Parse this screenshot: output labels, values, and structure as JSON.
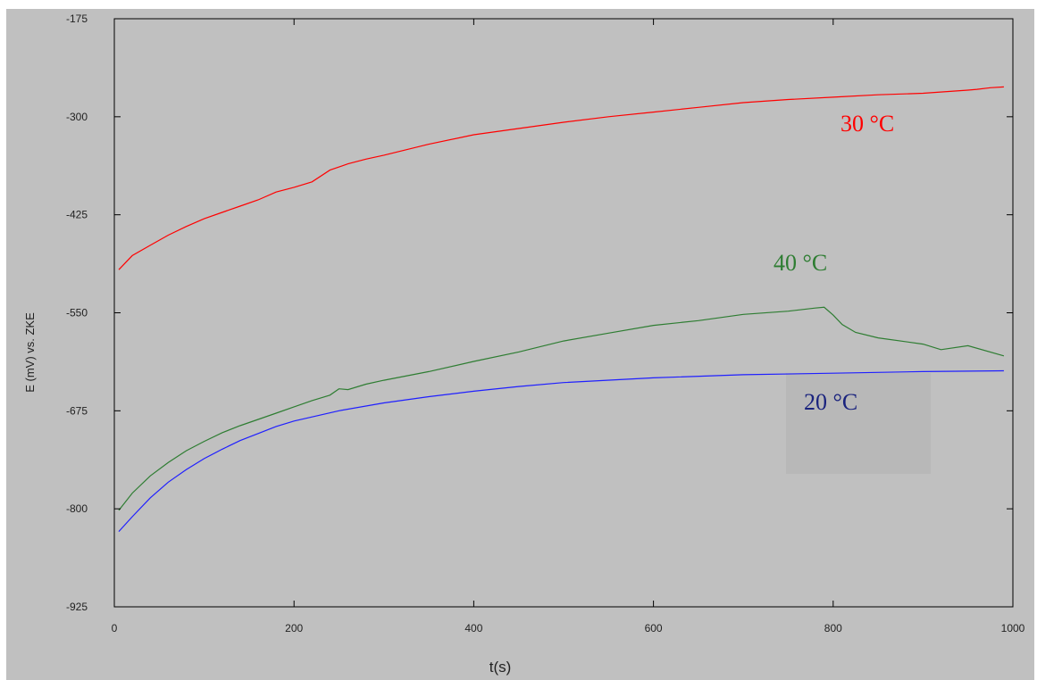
{
  "chart_data": {
    "type": "line",
    "title": "",
    "xlabel": "t(s)",
    "ylabel": "E (mV) vs. ZKE",
    "xlim": [
      0,
      1000
    ],
    "ylim": [
      -925,
      -175
    ],
    "xticks": [
      0,
      200,
      400,
      600,
      800,
      1000
    ],
    "yticks": [
      -175,
      -300,
      -425,
      -550,
      -675,
      -800,
      -925
    ],
    "grid": false,
    "legend": "none",
    "colors": {
      "background": "#c0c0c0",
      "frame": "#000000",
      "30C": "#ff0000",
      "40C": "#2e7d32",
      "20C": "#1f1fff",
      "annotation_20C": "#1a237e",
      "annotation_box": "#b8b8b8"
    },
    "series": [
      {
        "name": "30 °C",
        "color": "#ff0000",
        "x": [
          5,
          20,
          40,
          60,
          80,
          100,
          120,
          140,
          160,
          180,
          200,
          220,
          240,
          260,
          280,
          300,
          350,
          400,
          450,
          500,
          550,
          600,
          650,
          700,
          750,
          800,
          850,
          900,
          950,
          960,
          975,
          990
        ],
        "y": [
          -495,
          -477,
          -464,
          -451,
          -440,
          -430,
          -422,
          -414,
          -406,
          -396,
          -390,
          -383,
          -368,
          -360,
          -354,
          -349,
          -335,
          -323,
          -315,
          -307,
          -300,
          -294,
          -288,
          -282,
          -278,
          -275,
          -272,
          -270,
          -266,
          -265,
          -263,
          -262
        ]
      },
      {
        "name": "40 °C",
        "color": "#2e7d32",
        "x": [
          5,
          20,
          40,
          60,
          80,
          100,
          120,
          140,
          160,
          180,
          200,
          220,
          240,
          250,
          260,
          280,
          300,
          350,
          400,
          450,
          500,
          550,
          600,
          650,
          700,
          750,
          780,
          790,
          800,
          810,
          825,
          850,
          900,
          920,
          950,
          990
        ],
        "y": [
          -802,
          -780,
          -758,
          -741,
          -726,
          -714,
          -703,
          -694,
          -686,
          -678,
          -670,
          -662,
          -655,
          -647,
          -648,
          -641,
          -636,
          -625,
          -612,
          -600,
          -586,
          -576,
          -566,
          -560,
          -552,
          -548,
          -544,
          -543,
          -553,
          -565,
          -575,
          -582,
          -590,
          -597,
          -592,
          -605
        ]
      },
      {
        "name": "20 °C",
        "color": "#1f1fff",
        "x": [
          5,
          20,
          40,
          60,
          80,
          100,
          120,
          140,
          160,
          180,
          200,
          250,
          300,
          350,
          400,
          450,
          500,
          600,
          700,
          800,
          900,
          990
        ],
        "y": [
          -829,
          -810,
          -786,
          -766,
          -750,
          -736,
          -724,
          -713,
          -704,
          -695,
          -688,
          -675,
          -665,
          -657,
          -650,
          -644,
          -639,
          -633,
          -629,
          -627,
          -625,
          -624
        ]
      }
    ],
    "annotations": [
      {
        "text": "30 °C",
        "series": "30 °C"
      },
      {
        "text": "40 °C",
        "series": "40 °C"
      },
      {
        "text": "20 °C",
        "series": "20 °C"
      }
    ]
  }
}
